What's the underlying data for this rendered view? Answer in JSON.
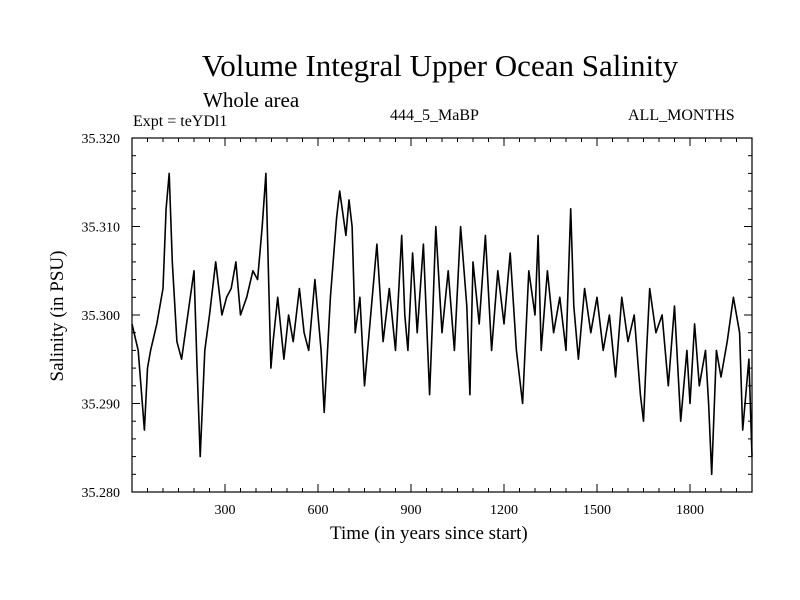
{
  "chart_data": {
    "type": "line",
    "title": "Volume Integral Upper Ocean Salinity",
    "subtitle": "Whole area",
    "expt_label": "Expt = teYDl1",
    "period_label": "444_5_MaBP",
    "months_label": "ALL_MONTHS",
    "xlabel": "Time (in years since start)",
    "ylabel": "Salinity (in PSU)",
    "xlim": [
      0,
      2000
    ],
    "ylim": [
      35.28,
      35.32
    ],
    "xticks": [
      300,
      600,
      900,
      1200,
      1500,
      1800
    ],
    "xtick_labels": [
      "300",
      "600",
      "900",
      "1200",
      "1500",
      "1800"
    ],
    "yticks": [
      35.28,
      35.29,
      35.3,
      35.31,
      35.32
    ],
    "ytick_labels": [
      "35.280",
      "35.290",
      "35.300",
      "35.310",
      "35.320"
    ],
    "series": [
      {
        "name": "Salinity",
        "x": [
          0,
          20,
          40,
          50,
          60,
          80,
          100,
          110,
          120,
          130,
          145,
          160,
          180,
          200,
          210,
          220,
          235,
          250,
          270,
          290,
          305,
          320,
          335,
          350,
          370,
          390,
          405,
          420,
          432,
          440,
          448,
          455,
          470,
          490,
          505,
          520,
          540,
          555,
          570,
          590,
          610,
          620,
          640,
          660,
          670,
          690,
          700,
          710,
          720,
          735,
          750,
          770,
          790,
          810,
          830,
          850,
          870,
          880,
          890,
          905,
          920,
          940,
          960,
          970,
          980,
          1000,
          1020,
          1040,
          1060,
          1080,
          1090,
          1100,
          1120,
          1140,
          1160,
          1180,
          1200,
          1220,
          1240,
          1260,
          1280,
          1300,
          1310,
          1320,
          1340,
          1360,
          1380,
          1400,
          1415,
          1425,
          1440,
          1460,
          1480,
          1500,
          1520,
          1540,
          1560,
          1580,
          1600,
          1620,
          1640,
          1650,
          1660,
          1670,
          1690,
          1710,
          1730,
          1750,
          1770,
          1790,
          1800,
          1815,
          1830,
          1850,
          1860,
          1870,
          1885,
          1900,
          1920,
          1940,
          1960,
          1970,
          1990,
          2000
        ],
        "values": [
          35.299,
          35.296,
          35.287,
          35.294,
          35.296,
          35.299,
          35.303,
          35.312,
          35.316,
          35.306,
          35.297,
          35.295,
          35.3,
          35.305,
          35.294,
          35.284,
          35.296,
          35.3,
          35.306,
          35.3,
          35.302,
          35.303,
          35.306,
          35.3,
          35.302,
          35.305,
          35.304,
          35.31,
          35.316,
          35.305,
          35.294,
          35.297,
          35.302,
          35.295,
          35.3,
          35.297,
          35.303,
          35.298,
          35.296,
          35.304,
          35.296,
          35.289,
          35.302,
          35.311,
          35.314,
          35.309,
          35.313,
          35.31,
          35.298,
          35.302,
          35.292,
          35.3,
          35.308,
          35.297,
          35.303,
          35.296,
          35.309,
          35.3,
          35.296,
          35.307,
          35.298,
          35.308,
          35.291,
          35.3,
          35.31,
          35.298,
          35.305,
          35.296,
          35.31,
          35.301,
          35.291,
          35.306,
          35.299,
          35.309,
          35.296,
          35.305,
          35.299,
          35.307,
          35.296,
          35.29,
          35.305,
          35.3,
          35.309,
          35.296,
          35.305,
          35.298,
          35.302,
          35.296,
          35.312,
          35.301,
          35.295,
          35.303,
          35.298,
          35.302,
          35.296,
          35.3,
          35.293,
          35.302,
          35.297,
          35.3,
          35.291,
          35.288,
          35.296,
          35.303,
          35.298,
          35.3,
          35.292,
          35.301,
          35.288,
          35.296,
          35.29,
          35.299,
          35.292,
          35.296,
          35.29,
          35.282,
          35.296,
          35.293,
          35.297,
          35.302,
          35.298,
          35.287,
          35.295,
          35.284
        ]
      }
    ]
  }
}
